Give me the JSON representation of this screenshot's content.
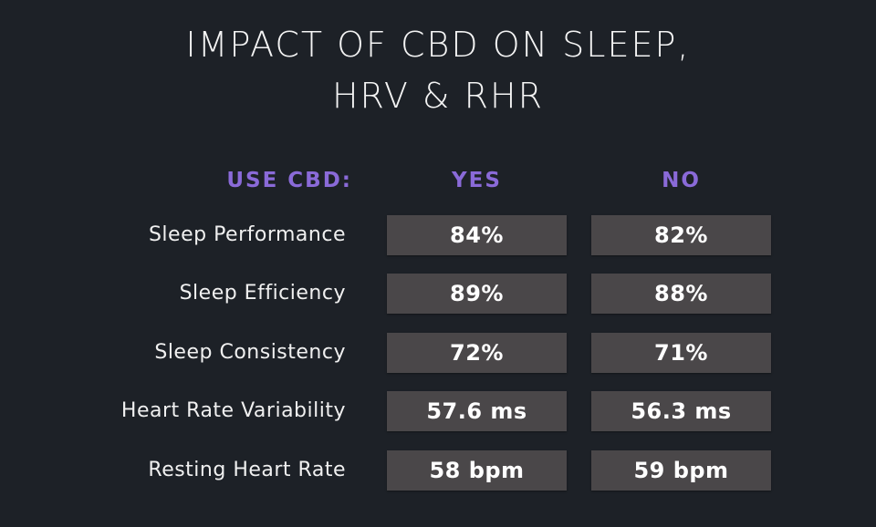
{
  "title_line1": "IMPACT OF CBD ON SLEEP,",
  "title_line2": "HRV & RHR",
  "chart_data": {
    "type": "table",
    "title": "IMPACT OF CBD ON SLEEP, HRV & RHR",
    "header": {
      "label": "USE CBD:",
      "columns": [
        "YES",
        "NO"
      ]
    },
    "rows": [
      {
        "metric": "Sleep Performance",
        "yes": "84%",
        "no": "82%"
      },
      {
        "metric": "Sleep Efficiency",
        "yes": "89%",
        "no": "88%"
      },
      {
        "metric": "Sleep Consistency",
        "yes": "72%",
        "no": "71%"
      },
      {
        "metric": "Heart Rate Variability",
        "yes": "57.6 ms",
        "no": "56.3 ms"
      },
      {
        "metric": "Resting Heart Rate",
        "yes": "58 bpm",
        "no": "59 bpm"
      }
    ]
  },
  "colors": {
    "background": "#1d2127",
    "accent": "#8a6ad8",
    "cell": "#4a4749",
    "text": "#ffffff"
  }
}
